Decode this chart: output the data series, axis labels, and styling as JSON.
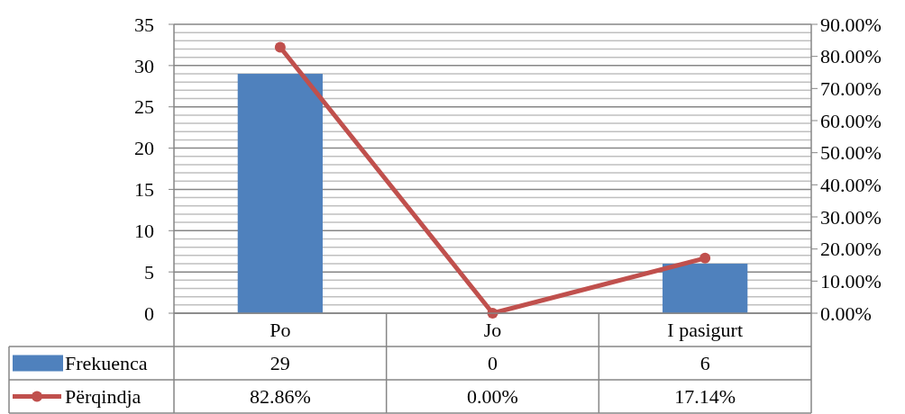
{
  "chart_data": {
    "type": "bar",
    "categories": [
      "Po",
      "Jo",
      "I pasigurt"
    ],
    "series": [
      {
        "name": "Frekuenca",
        "color": "#4f81bd",
        "values": [
          29,
          0,
          6
        ],
        "value_labels": [
          "29",
          "0",
          "6"
        ]
      },
      {
        "name": "Përqindja",
        "type": "line",
        "axis": "y2",
        "color": "#c0504d",
        "values": [
          82.86,
          0,
          17.14
        ],
        "value_labels": [
          "82.86%",
          "0.00%",
          "17.14%"
        ],
        "marker": "circle"
      }
    ],
    "ylim": [
      0,
      35
    ],
    "yticks": [
      0,
      5,
      10,
      15,
      20,
      25,
      30,
      35
    ],
    "y2lim": [
      0,
      90
    ],
    "y2ticks": [
      {
        "value": 0,
        "label": "0.00%"
      },
      {
        "value": 10,
        "label": "10.00%"
      },
      {
        "value": 20,
        "label": "20.00%"
      },
      {
        "value": 30,
        "label": "30.00%"
      },
      {
        "value": 40,
        "label": "40.00%"
      },
      {
        "value": 50,
        "label": "50.00%"
      },
      {
        "value": 60,
        "label": "60.00%"
      },
      {
        "value": 70,
        "label": "70.00%"
      },
      {
        "value": 80,
        "label": "80.00%"
      },
      {
        "value": 90,
        "label": "90.00%"
      }
    ],
    "grid": "y",
    "legend": "bottom left"
  }
}
